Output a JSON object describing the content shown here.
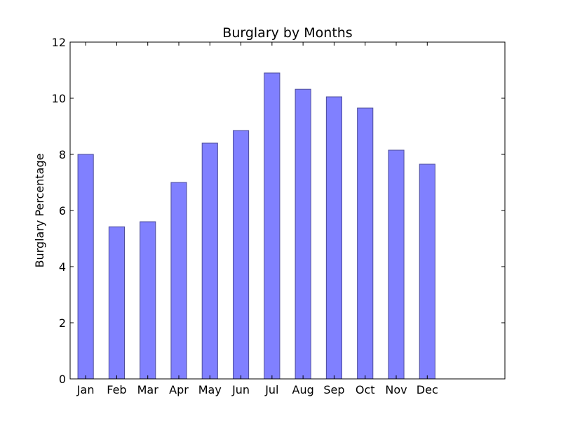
{
  "chart_data": {
    "type": "bar",
    "title": "Burglary by Months",
    "xlabel": "",
    "ylabel": "Burglary Percentage",
    "categories": [
      "Jan",
      "Feb",
      "Mar",
      "Apr",
      "May",
      "Jun",
      "Jul",
      "Aug",
      "Sep",
      "Oct",
      "Nov",
      "Dec"
    ],
    "values": [
      8.0,
      5.42,
      5.6,
      7.0,
      8.4,
      8.85,
      10.9,
      10.32,
      10.05,
      9.65,
      8.15,
      7.65
    ],
    "ylim": [
      0,
      12
    ],
    "yticks": [
      "0",
      "2",
      "4",
      "6",
      "8",
      "10",
      "12"
    ],
    "grid": false,
    "legend": "none",
    "bar_color": "#8080ff",
    "bar_edge_color": "#4d4d99"
  }
}
